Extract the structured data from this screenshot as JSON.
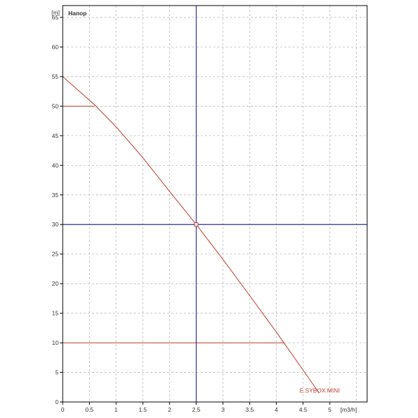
{
  "chart_data": {
    "type": "line",
    "title": "Напор",
    "ylabel": "[m]",
    "xlabel": "[m3/h]",
    "xlim": [
      0,
      5.7
    ],
    "ylim": [
      0,
      67
    ],
    "x_ticks": [
      0,
      0.5,
      1,
      1.5,
      2,
      2.5,
      3,
      3.5,
      4,
      4.5,
      5
    ],
    "x_tick_labels": [
      "0",
      "0.5",
      "1",
      "1.5",
      "2",
      "2.5",
      "3",
      "3.5",
      "4",
      "4.5",
      "5"
    ],
    "y_ticks": [
      0,
      5,
      10,
      15,
      20,
      25,
      30,
      35,
      40,
      45,
      50,
      55,
      60,
      65
    ],
    "y_tick_labels": [
      "0",
      "5",
      "10",
      "15",
      "20",
      "25",
      "30",
      "35",
      "40",
      "45",
      "50",
      "55",
      "60",
      "65"
    ],
    "grid": true,
    "series": [
      {
        "name": "E.SYBOX MINI",
        "color": "#c0392b",
        "x": [
          0,
          0.6,
          1.0,
          1.5,
          2.0,
          2.5,
          3.0,
          3.5,
          4.0,
          4.5,
          4.8
        ],
        "y": [
          55,
          50.2,
          46.5,
          41.3,
          35.6,
          30,
          24.1,
          18.0,
          11.8,
          5.4,
          1.5
        ]
      }
    ],
    "horizontal_markers": [
      {
        "y": 50,
        "x_from": 0,
        "x_to": 0.6,
        "color": "#c0392b"
      },
      {
        "y": 10,
        "x_from": 0,
        "x_to": 4.15,
        "color": "#c0392b"
      }
    ],
    "crosshair": {
      "x": 2.5,
      "y": 30,
      "color": "#2e2e9c"
    }
  }
}
